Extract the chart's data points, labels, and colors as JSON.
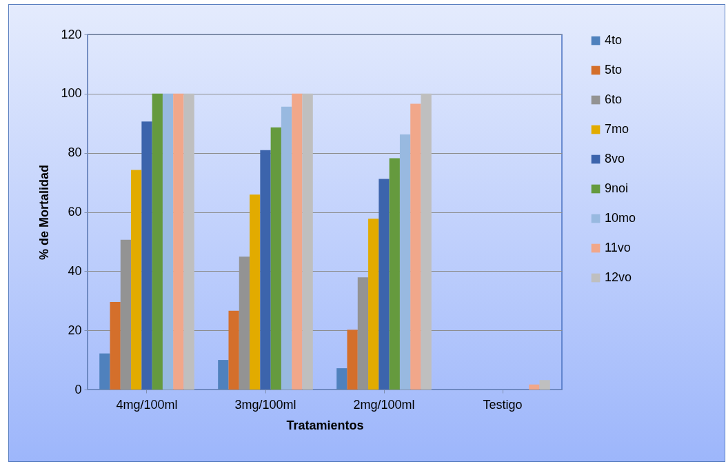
{
  "chart_data": {
    "type": "bar",
    "xlabel": "Tratamientos",
    "ylabel": "% de Mortalidad",
    "categories": [
      "4mg/100ml",
      "3mg/100ml",
      "2mg/100ml",
      "Testigo"
    ],
    "ylim": [
      0,
      120
    ],
    "yticks": [
      0,
      20,
      40,
      60,
      80,
      100,
      120
    ],
    "grid": "y",
    "legend": "right",
    "series": [
      {
        "name": "4to",
        "color": "#4f81bd",
        "values": [
          12.2,
          10.0,
          7.2,
          0
        ]
      },
      {
        "name": "5to",
        "color": "#d46f2b",
        "values": [
          29.6,
          26.6,
          20.2,
          0
        ]
      },
      {
        "name": "6to",
        "color": "#939393",
        "values": [
          50.6,
          44.9,
          37.9,
          0
        ]
      },
      {
        "name": "7mo",
        "color": "#e2ab00",
        "values": [
          74.2,
          65.9,
          57.7,
          0
        ]
      },
      {
        "name": "8vo",
        "color": "#3c64ac",
        "values": [
          90.6,
          80.9,
          71.2,
          0
        ]
      },
      {
        "name": "9noi",
        "color": "#659a3e",
        "values": [
          100,
          88.6,
          78.2,
          0
        ]
      },
      {
        "name": "10mo",
        "color": "#98b9e0",
        "values": [
          100,
          95.6,
          86.2,
          0
        ]
      },
      {
        "name": "11vo",
        "color": "#f1a78a",
        "values": [
          100,
          100,
          96.6,
          1.7
        ]
      },
      {
        "name": "12vo",
        "color": "#bfbfbf",
        "values": [
          100,
          100,
          100,
          3.2
        ]
      }
    ]
  }
}
